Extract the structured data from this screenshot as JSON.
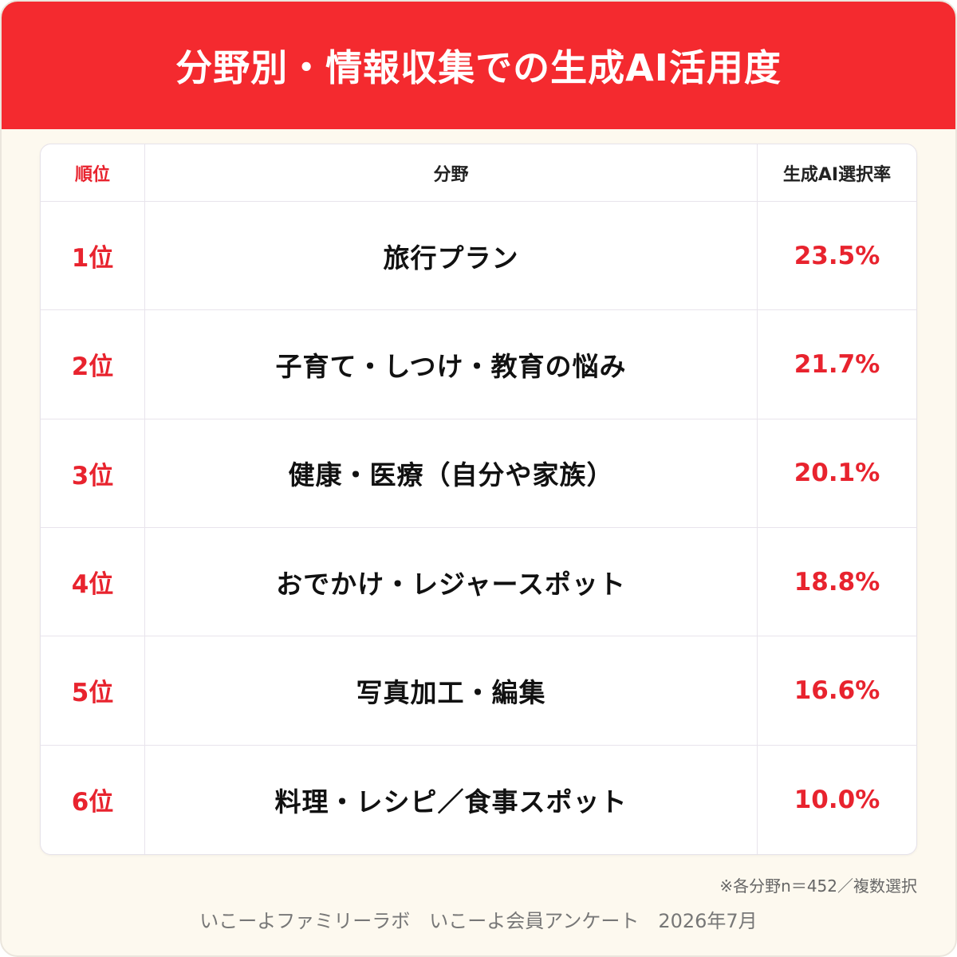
{
  "chart_data": {
    "type": "table",
    "title": "分野別・情報収集での生成AI活用度",
    "columns": [
      "順位",
      "分野",
      "生成AI選択率"
    ],
    "rows": [
      {
        "rank": "1位",
        "field": "旅行プラン",
        "rate": "23.5%"
      },
      {
        "rank": "2位",
        "field": "子育て・しつけ・教育の悩み",
        "rate": "21.7%"
      },
      {
        "rank": "3位",
        "field": "健康・医療（自分や家族）",
        "rate": "20.1%"
      },
      {
        "rank": "4位",
        "field": "おでかけ・レジャースポット",
        "rate": "18.8%"
      },
      {
        "rank": "5位",
        "field": "写真加工・編集",
        "rate": "16.6%"
      },
      {
        "rank": "6位",
        "field": "料理・レシピ／食事スポット",
        "rate": "10.0%"
      }
    ],
    "note": "※各分野n＝452／複数選択",
    "source": "いこーよファミリーラボ　いこーよ会員アンケート　2026年7月"
  },
  "colors": {
    "header_red": "#f42a2f",
    "accent_red": "#e8232e",
    "background": "#fdf9ef"
  }
}
